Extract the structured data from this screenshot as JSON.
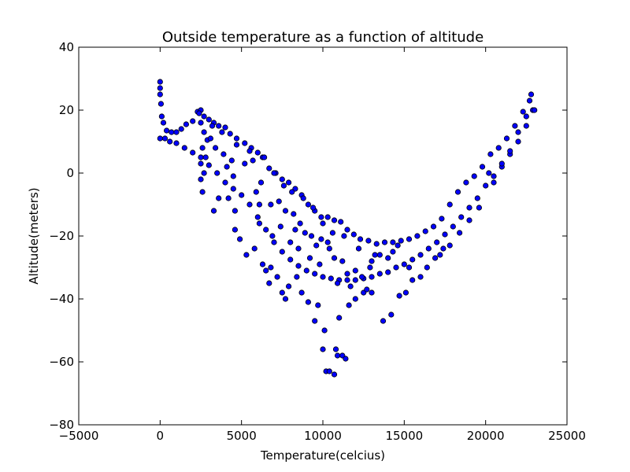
{
  "chart_data": {
    "type": "scatter",
    "title": "Outside temperature as a function of altitude",
    "xlabel": "Temperature(celcius)",
    "ylabel": "Altitude(meters)",
    "xlim": [
      -5000,
      25000
    ],
    "ylim": [
      -80,
      40
    ],
    "xticks": [
      -5000,
      0,
      5000,
      10000,
      15000,
      20000,
      25000
    ],
    "xtick_labels": [
      "−5000",
      "0",
      "5000",
      "10000",
      "15000",
      "20000",
      "25000"
    ],
    "yticks": [
      -80,
      -60,
      -40,
      -20,
      0,
      20,
      40
    ],
    "ytick_labels": [
      "−80",
      "−60",
      "−40",
      "−20",
      "0",
      "20",
      "40"
    ],
    "grid": false,
    "legend": false,
    "marker_color": "#0000ff",
    "marker_edge": "#000000",
    "series": [
      {
        "points": [
          [
            0,
            29
          ],
          [
            0,
            27
          ],
          [
            0,
            25
          ],
          [
            50,
            22
          ],
          [
            100,
            18
          ],
          [
            200,
            16
          ],
          [
            400,
            13.5
          ],
          [
            700,
            13
          ],
          [
            1000,
            13
          ],
          [
            1300,
            14
          ],
          [
            1600,
            15.5
          ],
          [
            2000,
            16.5
          ],
          [
            2300,
            19.5
          ],
          [
            2500,
            20
          ],
          [
            2700,
            18
          ],
          [
            3000,
            17
          ],
          [
            3300,
            16
          ],
          [
            3600,
            15
          ],
          [
            4000,
            14.5
          ],
          [
            4300,
            12.5
          ],
          [
            4700,
            11
          ],
          [
            5200,
            9.5
          ],
          [
            5600,
            8
          ],
          [
            6000,
            6.5
          ],
          [
            6300,
            5
          ],
          [
            6700,
            1.5
          ],
          [
            7100,
            0
          ],
          [
            7500,
            -2
          ],
          [
            7900,
            -3
          ],
          [
            8300,
            -5
          ],
          [
            8700,
            -7
          ],
          [
            9100,
            -10
          ],
          [
            9500,
            -12
          ],
          [
            9900,
            -14
          ],
          [
            10300,
            -14
          ],
          [
            10700,
            -15
          ],
          [
            11100,
            -15.5
          ],
          [
            11500,
            -18
          ],
          [
            11900,
            -19.5
          ],
          [
            12300,
            -21
          ],
          [
            12800,
            -21.5
          ],
          [
            13300,
            -22.5
          ],
          [
            13800,
            -22
          ],
          [
            14300,
            -22
          ],
          [
            14800,
            -21.5
          ],
          [
            15300,
            -21
          ],
          [
            15800,
            -20
          ],
          [
            16300,
            -18.5
          ],
          [
            16800,
            -17
          ],
          [
            17300,
            -14.5
          ],
          [
            17800,
            -10
          ],
          [
            18300,
            -6
          ],
          [
            18800,
            -3
          ],
          [
            19300,
            -1
          ],
          [
            19800,
            2
          ],
          [
            20300,
            6
          ],
          [
            20800,
            8
          ],
          [
            21300,
            11
          ],
          [
            21800,
            15
          ],
          [
            22300,
            19.5
          ],
          [
            22700,
            23
          ],
          [
            22800,
            25
          ]
        ]
      },
      {
        "points": [
          [
            0,
            11
          ],
          [
            300,
            11
          ],
          [
            600,
            10
          ],
          [
            1000,
            9.5
          ],
          [
            1500,
            8
          ],
          [
            2000,
            6.5
          ],
          [
            2500,
            5
          ],
          [
            3000,
            2.5
          ],
          [
            3500,
            0
          ],
          [
            4000,
            -3
          ],
          [
            4500,
            -5
          ],
          [
            5000,
            -7
          ],
          [
            5500,
            -10
          ],
          [
            6000,
            -14
          ],
          [
            6500,
            -18
          ],
          [
            7000,
            -22
          ],
          [
            7500,
            -25
          ],
          [
            8000,
            -27.5
          ],
          [
            8500,
            -29.5
          ],
          [
            9000,
            -31
          ],
          [
            9500,
            -32
          ],
          [
            10000,
            -33
          ],
          [
            10500,
            -33.5
          ],
          [
            11000,
            -34
          ],
          [
            11500,
            -34
          ],
          [
            12000,
            -34
          ],
          [
            12500,
            -33.5
          ],
          [
            13000,
            -33
          ],
          [
            13500,
            -32
          ],
          [
            14000,
            -31.5
          ],
          [
            14500,
            -30
          ],
          [
            15000,
            -29
          ],
          [
            15500,
            -27.5
          ],
          [
            16000,
            -26
          ],
          [
            16500,
            -24
          ],
          [
            17000,
            -22
          ],
          [
            17500,
            -19.5
          ],
          [
            18000,
            -17
          ],
          [
            18500,
            -14
          ],
          [
            19000,
            -11
          ],
          [
            19500,
            -8
          ],
          [
            20000,
            -4
          ],
          [
            20500,
            -1
          ],
          [
            21000,
            2
          ],
          [
            21500,
            6
          ],
          [
            22000,
            10
          ],
          [
            22500,
            15
          ],
          [
            22900,
            20
          ],
          [
            23000,
            20
          ]
        ]
      },
      {
        "points": [
          [
            2400,
            19
          ],
          [
            2500,
            16
          ],
          [
            2700,
            13
          ],
          [
            2900,
            10.5
          ],
          [
            3100,
            11
          ],
          [
            2600,
            8
          ],
          [
            2800,
            5
          ],
          [
            2500,
            3
          ],
          [
            2700,
            0
          ],
          [
            2500,
            -2
          ],
          [
            2600,
            -6
          ],
          [
            3300,
            -12
          ],
          [
            3600,
            -8
          ],
          [
            4200,
            -8
          ],
          [
            4600,
            -12
          ],
          [
            4600,
            -18
          ],
          [
            4900,
            -21
          ],
          [
            5300,
            -26
          ],
          [
            5800,
            -24
          ],
          [
            6300,
            -29
          ],
          [
            6500,
            -31
          ],
          [
            6700,
            -35
          ],
          [
            6800,
            -30
          ],
          [
            7200,
            -33
          ],
          [
            7500,
            -38
          ],
          [
            7700,
            -40
          ],
          [
            7900,
            -36
          ],
          [
            8400,
            -33
          ],
          [
            8700,
            -38
          ],
          [
            9100,
            -41
          ],
          [
            9500,
            -47
          ],
          [
            9700,
            -42
          ],
          [
            10000,
            -56
          ],
          [
            10100,
            -50
          ],
          [
            10200,
            -63
          ],
          [
            10400,
            -63
          ],
          [
            10700,
            -64
          ],
          [
            10800,
            -56
          ],
          [
            10900,
            -58
          ],
          [
            11000,
            -46
          ],
          [
            11200,
            -58
          ],
          [
            11400,
            -59
          ],
          [
            11600,
            -42
          ],
          [
            12000,
            -40
          ],
          [
            12500,
            -38
          ],
          [
            13000,
            -38
          ],
          [
            13700,
            -47
          ],
          [
            14200,
            -45
          ],
          [
            14700,
            -39
          ],
          [
            15100,
            -38
          ],
          [
            15500,
            -34
          ],
          [
            16000,
            -33
          ],
          [
            16400,
            -30
          ],
          [
            16900,
            -27
          ],
          [
            17400,
            -24
          ],
          [
            17800,
            -23
          ],
          [
            18400,
            -19
          ],
          [
            19000,
            -15
          ],
          [
            19600,
            -11
          ],
          [
            20500,
            -3
          ],
          [
            20200,
            0
          ],
          [
            21000,
            3
          ],
          [
            21500,
            7
          ],
          [
            22000,
            13
          ],
          [
            22500,
            18
          ],
          [
            5200,
            3
          ],
          [
            5700,
            4
          ],
          [
            6200,
            -3
          ],
          [
            6800,
            -10
          ],
          [
            7300,
            -9
          ],
          [
            7700,
            -12
          ],
          [
            8200,
            -13
          ],
          [
            8600,
            -16
          ],
          [
            8900,
            -19
          ],
          [
            9300,
            -20
          ],
          [
            9600,
            -23
          ],
          [
            9900,
            -21
          ],
          [
            10400,
            -24
          ],
          [
            10700,
            -27
          ],
          [
            11200,
            -28
          ],
          [
            11500,
            -32
          ],
          [
            12000,
            -31
          ],
          [
            12400,
            -33
          ],
          [
            13000,
            -28
          ],
          [
            13500,
            -26
          ],
          [
            14000,
            -27
          ],
          [
            14300,
            -25
          ],
          [
            14600,
            -23
          ],
          [
            4100,
            2
          ],
          [
            4500,
            -1
          ],
          [
            6100,
            -16
          ],
          [
            6900,
            -20
          ],
          [
            8000,
            -22
          ],
          [
            9200,
            -27
          ],
          [
            10900,
            -35
          ],
          [
            11700,
            -36
          ],
          [
            12700,
            -37
          ],
          [
            3900,
            6
          ],
          [
            4400,
            4
          ],
          [
            5900,
            -6
          ],
          [
            7400,
            -17
          ],
          [
            8500,
            -24
          ],
          [
            9800,
            -29
          ],
          [
            3800,
            13
          ],
          [
            4700,
            9
          ],
          [
            5500,
            7
          ],
          [
            6400,
            5
          ],
          [
            7000,
            0
          ],
          [
            7600,
            -4
          ],
          [
            8100,
            -6
          ],
          [
            8800,
            -8
          ],
          [
            9400,
            -11
          ],
          [
            10000,
            -16
          ],
          [
            10600,
            -19
          ],
          [
            11300,
            -20
          ],
          [
            12200,
            -24
          ],
          [
            13200,
            -26
          ],
          [
            3200,
            15
          ],
          [
            3400,
            8
          ],
          [
            6100,
            -10
          ],
          [
            8300,
            -18
          ],
          [
            10300,
            -22
          ],
          [
            12900,
            -30
          ],
          [
            15300,
            -30
          ],
          [
            17200,
            -26
          ]
        ]
      }
    ]
  }
}
